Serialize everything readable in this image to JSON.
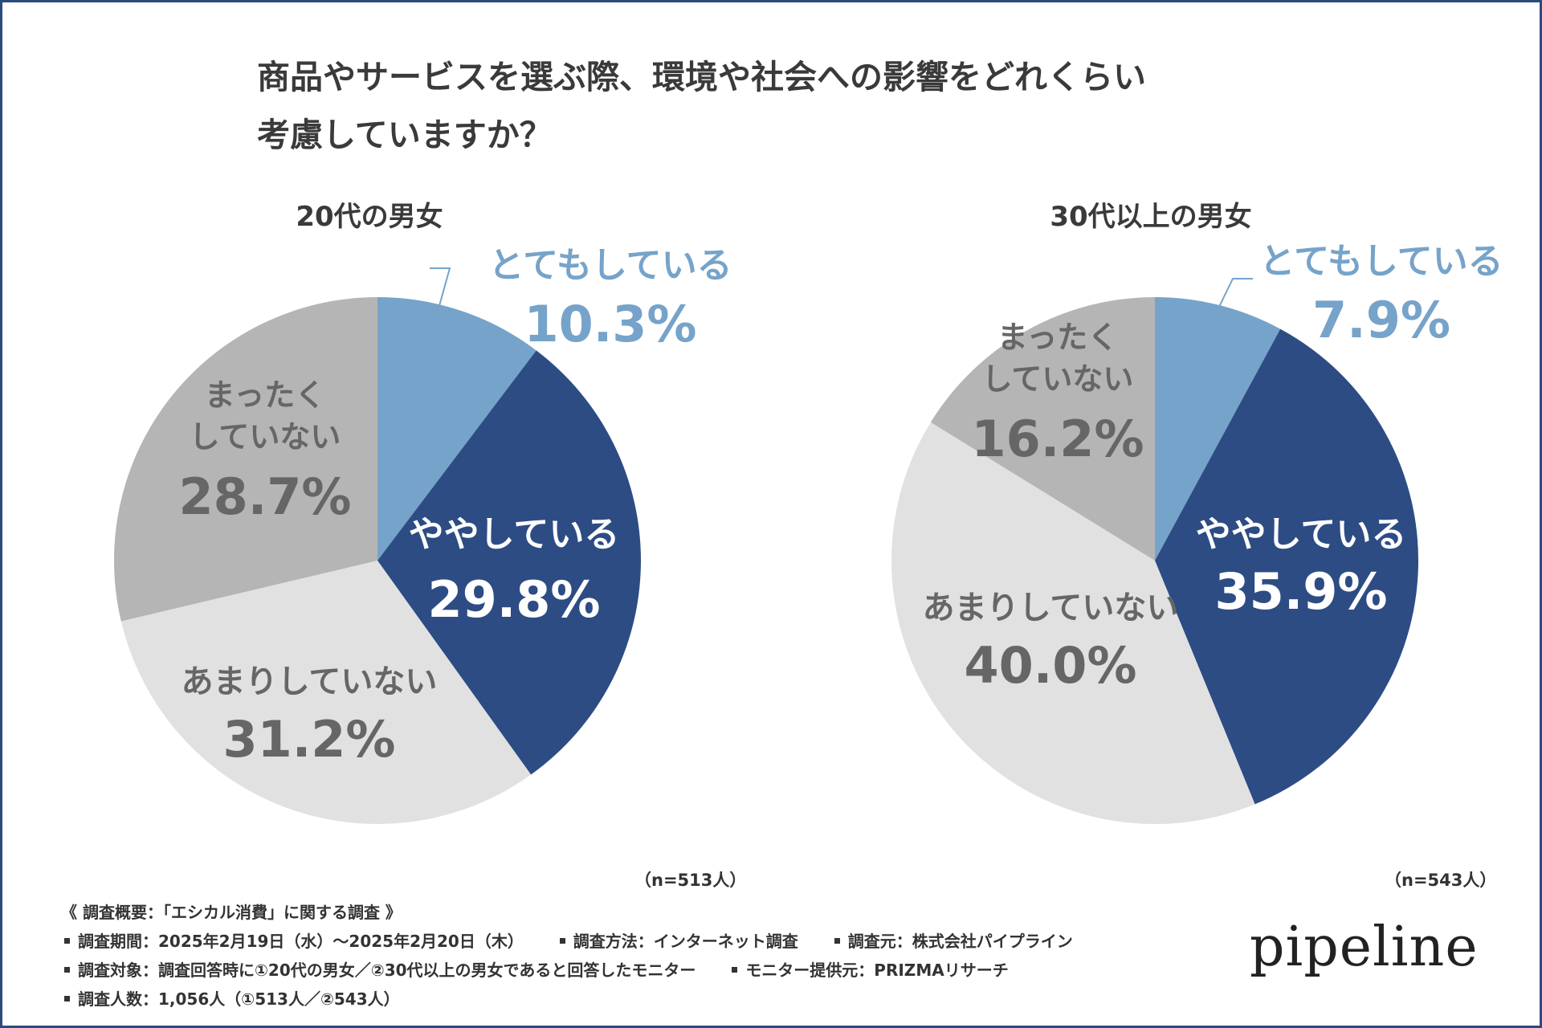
{
  "title": {
    "line1": "商品やサービスを選ぶ際、環境や社会への影響をどれくらい",
    "line2": "考慮していますか？"
  },
  "colors": {
    "とてもしている": "#76a3c9",
    "ややしている": "#2d4c84",
    "あまりしていない": "#e1e1e1",
    "まったくしていない": "#b5b5b5"
  },
  "chart_data": [
    {
      "type": "pie",
      "title": "20代の男女",
      "n_label": "（n=513人）",
      "categories": [
        "とてもしている",
        "ややしている",
        "あまりしていない",
        "まったくしていない"
      ],
      "values": [
        10.3,
        29.8,
        31.2,
        28.7
      ],
      "labels": [
        {
          "text_lines": [
            "とてもしている"
          ],
          "value_text": "10.3%"
        },
        {
          "text_lines": [
            "ややしている"
          ],
          "value_text": "29.8%"
        },
        {
          "text_lines": [
            "あまりしていない"
          ],
          "value_text": "31.2%"
        },
        {
          "text_lines": [
            "まったく",
            "していない"
          ],
          "value_text": "28.7%"
        }
      ]
    },
    {
      "type": "pie",
      "title": "30代以上の男女",
      "n_label": "（n=543人）",
      "categories": [
        "とてもしている",
        "ややしている",
        "あまりしていない",
        "まったくしていない"
      ],
      "values": [
        7.9,
        35.9,
        40.0,
        16.2
      ],
      "labels": [
        {
          "text_lines": [
            "とてもしている"
          ],
          "value_text": "7.9%"
        },
        {
          "text_lines": [
            "ややしている"
          ],
          "value_text": "35.9%"
        },
        {
          "text_lines": [
            "あまりしていない"
          ],
          "value_text": "40.0%"
        },
        {
          "text_lines": [
            "まったく",
            "していない"
          ],
          "value_text": "16.2%"
        }
      ]
    }
  ],
  "footer": {
    "heading": "《 調査概要：「エシカル消費」に関する調査 》",
    "period": "調査期間：2025年2月19日（水）～2025年2月20日（木）",
    "method": "調査方法：インターネット調査",
    "source": "調査元：株式会社パイプライン",
    "target": "調査対象：調査回答時に①20代の男女／②30代以上の男女であると回答したモニター",
    "provider": "モニター提供元：PRIZMAリサーチ",
    "count": "調査人数：1,056人（①513人／②543人）"
  },
  "logo": "pipeline"
}
